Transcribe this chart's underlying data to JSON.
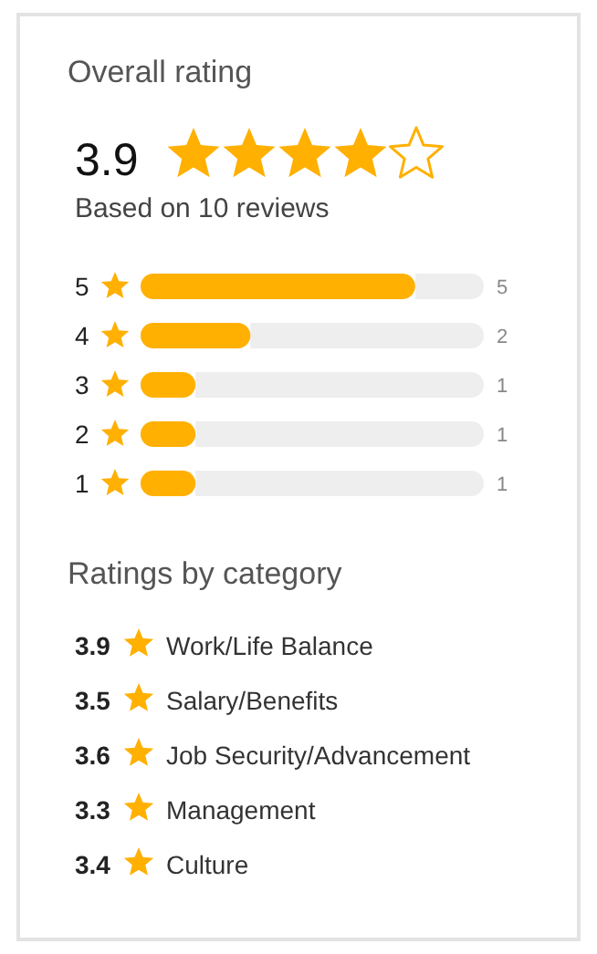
{
  "chart_data": [
    {
      "type": "bar",
      "orientation": "horizontal",
      "title": "Overall rating",
      "subtitle": "Based on 10 reviews",
      "annotations": [
        "3.9"
      ],
      "categories": [
        "5",
        "4",
        "3",
        "2",
        "1"
      ],
      "values": [
        5,
        2,
        1,
        1,
        1
      ],
      "color": "#ffb000",
      "xlim": [
        0,
        6.25
      ],
      "data_labels": true,
      "tick_labels": "y"
    },
    {
      "type": "other",
      "title": "Ratings by category",
      "categories": [
        "Work/Life Balance",
        "Salary/Benefits",
        "Job Security/Advancement",
        "Management",
        "Culture"
      ],
      "values": [
        3.9,
        3.5,
        3.6,
        3.3,
        3.4
      ],
      "color": "#ffb000",
      "data_labels": true
    }
  ]
}
